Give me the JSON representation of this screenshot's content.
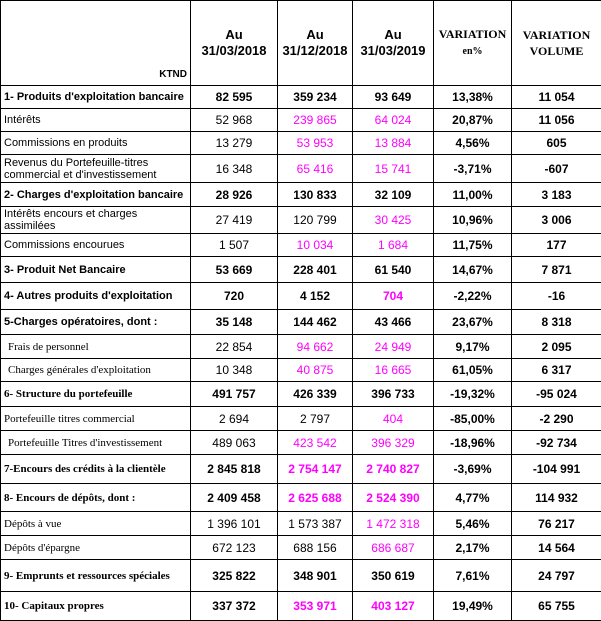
{
  "header": {
    "unit": "KTND",
    "columns": [
      [
        "Au",
        "31/03/2018"
      ],
      [
        "Au",
        "31/12/2018"
      ],
      [
        "Au",
        "31/03/2019"
      ],
      [
        "VARIATION",
        "en%"
      ],
      [
        "VARIATION",
        "VOLUME"
      ]
    ]
  },
  "table": {
    "rows": [
      [
        "1- Produits d'exploitation bancaire",
        "82 595",
        "359 234",
        "93 649",
        "13,38%",
        "11 054"
      ],
      [
        "Intérêts",
        "52 968",
        "239 865",
        "64 024",
        "20,87%",
        "11 056"
      ],
      [
        "Commissions en produits",
        "13 279",
        "53 953",
        "13 884",
        "4,56%",
        "605"
      ],
      [
        "Revenus du Portefeuille-titres commercial et d'investissement",
        "16 348",
        "65 416",
        "15 741",
        "-3,71%",
        "-607"
      ],
      [
        "2- Charges d'exploitation bancaire",
        "28 926",
        "130 833",
        "32 109",
        "11,00%",
        "3 183"
      ],
      [
        "Intérêts encours et charges assimilées",
        "27 419",
        "120 799",
        "30 425",
        "10,96%",
        "3 006"
      ],
      [
        "Commissions encourues",
        "1 507",
        "10 034",
        "1 684",
        "11,75%",
        "177"
      ],
      [
        "3- Produit Net Bancaire",
        "53 669",
        "228 401",
        "61 540",
        "14,67%",
        "7 871"
      ],
      [
        "4- Autres produits d'exploitation",
        "720",
        "4 152",
        "704",
        "-2,22%",
        "-16"
      ],
      [
        "5-Charges opératoires, dont :",
        "35 148",
        "144 462",
        "43 466",
        "23,67%",
        "8 318"
      ],
      [
        "Frais de personnel",
        "22 854",
        "94 662",
        "24 949",
        "9,17%",
        "2 095"
      ],
      [
        "Charges générales d'exploitation",
        "10 348",
        "40 875",
        "16 665",
        "61,05%",
        "6 317"
      ],
      [
        "6- Structure du portefeuille",
        "491 757",
        "426 339",
        "396 733",
        "-19,32%",
        "-95 024"
      ],
      [
        "Portefeuille titres commercial",
        "2 694",
        "2 797",
        "404",
        "-85,00%",
        "-2 290"
      ],
      [
        "Portefeuille Titres d'investissement",
        "489 063",
        "423 542",
        "396 329",
        "-18,96%",
        "-92 734"
      ],
      [
        "7-Encours des crédits à la clientèle",
        "2 845 818",
        "2 754 147",
        "2 740 827",
        "-3,69%",
        "-104 991"
      ],
      [
        "8- Encours de dépôts, dont :",
        "2 409 458",
        "2 625 688",
        "2 524 390",
        "4,77%",
        "114 932"
      ],
      [
        "Dépôts à vue",
        "1 396 101",
        "1 573 387",
        "1 472 318",
        "5,46%",
        "76 217"
      ],
      [
        "Dépôts d'épargne",
        "672 123",
        "688 156",
        "686 687",
        "2,17%",
        "14 564"
      ],
      [
        "9- Emprunts et ressources spéciales",
        "325 822",
        "348 901",
        "350 619",
        "7,61%",
        "24 797"
      ],
      [
        "10- Capitaux propres",
        "337 372",
        "353 971",
        "403 127",
        "19,49%",
        "65 755"
      ]
    ]
  }
}
